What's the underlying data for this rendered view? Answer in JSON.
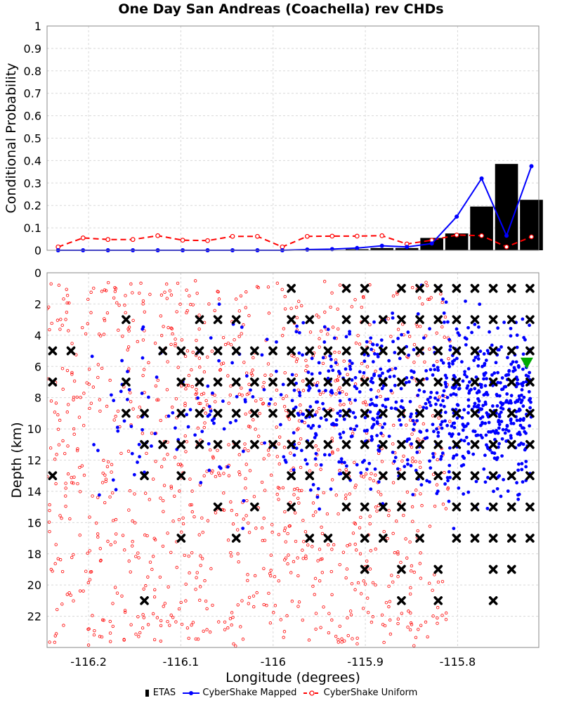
{
  "title": "One Day San Andreas (Coachella) rev CHDs",
  "legend": {
    "etas_label": "ETAS",
    "mapped_label": "CyberShake Mapped",
    "uniform_label": "CyberShake Uniform"
  },
  "colors": {
    "etas": "#000000",
    "mapped": "#0000ff",
    "uniform": "#ff0000",
    "hypocenter": "#00aa00",
    "grid": "#d8d8d8"
  },
  "chart_data": [
    {
      "type": "bar+line",
      "ylabel": "Conditional Probability",
      "xlim": [
        -116.245,
        -115.712
      ],
      "ylim": [
        0,
        1
      ],
      "yticks": [
        0,
        0.1,
        0.2,
        0.3,
        0.4,
        0.5,
        0.6,
        0.7,
        0.8,
        0.9,
        1
      ],
      "ytick_labels": [
        "0",
        "0.1",
        "0.2",
        "0.3",
        "0.4",
        "0.5",
        "0.6",
        "0.7",
        "0.8",
        "0.9",
        "1"
      ],
      "grid": true,
      "x": [
        -116.233,
        -116.206,
        -116.179,
        -116.152,
        -116.125,
        -116.098,
        -116.071,
        -116.044,
        -116.017,
        -115.99,
        -115.963,
        -115.936,
        -115.909,
        -115.882,
        -115.855,
        -115.828,
        -115.801,
        -115.774,
        -115.747,
        -115.72
      ],
      "series": [
        {
          "name": "ETAS",
          "style": "bar",
          "values": [
            0,
            0,
            0,
            0,
            0,
            0,
            0,
            0,
            0,
            0,
            0,
            0,
            0.005,
            0.01,
            0.01,
            0.055,
            0.075,
            0.195,
            0.385,
            0.225
          ]
        },
        {
          "name": "CyberShake Mapped",
          "style": "solid-dot",
          "values": [
            0,
            0,
            0,
            0,
            0,
            0,
            0,
            0,
            0,
            0,
            0.003,
            0.005,
            0.01,
            0.02,
            0.015,
            0.03,
            0.15,
            0.32,
            0.065,
            0.375
          ]
        },
        {
          "name": "CyberShake Uniform",
          "style": "dashed-open",
          "values": [
            0.015,
            0.055,
            0.048,
            0.048,
            0.065,
            0.045,
            0.043,
            0.062,
            0.062,
            0.015,
            0.062,
            0.063,
            0.063,
            0.065,
            0.028,
            0.045,
            0.068,
            0.065,
            0.015,
            0.06
          ]
        }
      ]
    },
    {
      "type": "scatter",
      "xlabel": "Longitude (degrees)",
      "ylabel": "Depth (km)",
      "xlim": [
        -116.245,
        -115.712
      ],
      "ylim": [
        24,
        0
      ],
      "xticks": [
        -116.2,
        -116.1,
        -116,
        -115.9,
        -115.8
      ],
      "xtick_labels": [
        "-116.2",
        "-116.1",
        "-116",
        "-115.9",
        "-115.8"
      ],
      "yticks": [
        0,
        2,
        4,
        6,
        8,
        10,
        12,
        14,
        16,
        18,
        20,
        22
      ],
      "ytick_labels": [
        "0",
        "2",
        "4",
        "6",
        "8",
        "10",
        "12",
        "14",
        "16",
        "18",
        "20",
        "22"
      ],
      "grid": true,
      "hypocenter": {
        "lon": -115.725,
        "depth": 5.8
      },
      "etas_grid": {
        "lon_start": -116.239,
        "lon_step": 0.0199,
        "rows": [
          {
            "depth": 1,
            "cols": [
              13,
              16,
              17,
              19,
              20,
              21,
              22,
              23,
              24,
              25,
              26
            ]
          },
          {
            "depth": 3,
            "cols": [
              4,
              8,
              9,
              10,
              13,
              14,
              16,
              17,
              18,
              19,
              20,
              21,
              22,
              23,
              24,
              25,
              26
            ]
          },
          {
            "depth": 5,
            "cols": [
              0,
              1,
              6,
              7,
              8,
              9,
              10,
              11,
              12,
              13,
              14,
              15,
              16,
              17,
              18,
              19,
              20,
              21,
              22,
              23,
              24,
              25,
              26
            ]
          },
          {
            "depth": 7,
            "cols": [
              0,
              4,
              7,
              8,
              9,
              10,
              11,
              12,
              13,
              14,
              15,
              16,
              17,
              18,
              19,
              20,
              21,
              22,
              23,
              24,
              25,
              26
            ]
          },
          {
            "depth": 9,
            "cols": [
              4,
              5,
              7,
              8,
              9,
              10,
              11,
              12,
              13,
              14,
              15,
              16,
              17,
              18,
              19,
              20,
              21,
              22,
              23,
              24,
              25,
              26
            ]
          },
          {
            "depth": 11,
            "cols": [
              5,
              6,
              7,
              8,
              9,
              10,
              11,
              12,
              13,
              14,
              15,
              16,
              17,
              18,
              19,
              20,
              21,
              22,
              23,
              24,
              25,
              26
            ]
          },
          {
            "depth": 13,
            "cols": [
              0,
              5,
              7,
              13,
              14,
              16,
              18,
              19,
              20,
              21,
              22,
              23,
              24,
              25,
              26
            ]
          },
          {
            "depth": 15,
            "cols": [
              9,
              11,
              13,
              16,
              17,
              18,
              19,
              22,
              23,
              24,
              25,
              26
            ]
          },
          {
            "depth": 17,
            "cols": [
              7,
              10,
              14,
              15,
              17,
              18,
              20,
              22,
              23,
              24,
              25,
              26
            ]
          },
          {
            "depth": 19,
            "cols": [
              17,
              19,
              21,
              24,
              25
            ]
          },
          {
            "depth": 21,
            "cols": [
              5,
              19,
              21,
              24
            ]
          }
        ]
      }
    }
  ]
}
